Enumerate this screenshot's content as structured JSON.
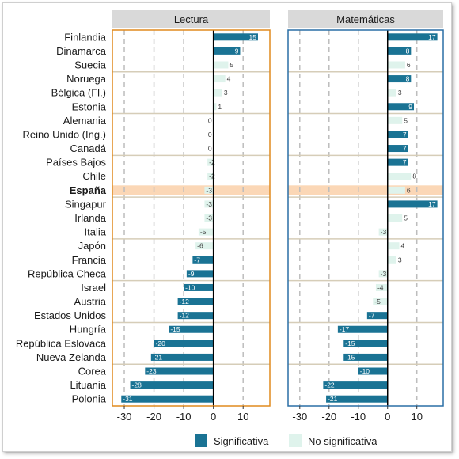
{
  "colors": {
    "significant": "#1a7394",
    "not_significant": "#dff3ec",
    "highlight": "#fbd7b6",
    "panel_left_border": "#e08a1e",
    "panel_right_border": "#2a6fa5",
    "strip_bg": "#d9d9d9",
    "group_separator": "#d6cdb8",
    "grid": "#bdbdbd"
  },
  "chart_data": {
    "type": "bar",
    "orientation": "horizontal",
    "categories": [
      "Finlandia",
      "Dinamarca",
      "Suecia",
      "Noruega",
      "Bélgica (Fl.)",
      "Estonia",
      "Alemania",
      "Reino Unido (Ing.)",
      "Canadá",
      "Países Bajos",
      "Chile",
      "España",
      "Singapur",
      "Irlanda",
      "Italia",
      "Japón",
      "Francia",
      "República Checa",
      "Israel",
      "Austria",
      "Estados Unidos",
      "Hungría",
      "República Eslovaca",
      "Nueva Zelanda",
      "Corea",
      "Lituania",
      "Polonia"
    ],
    "highlight_category": "España",
    "group_separators_after": [
      2,
      5,
      8,
      11,
      14,
      17,
      20,
      23
    ],
    "xlim": [
      -34,
      19
    ],
    "xticks": [
      -30,
      -20,
      -10,
      0,
      10
    ],
    "panels": [
      {
        "title": "Lectura",
        "values": [
          15,
          9,
          5,
          4,
          3,
          1,
          0,
          0,
          0,
          -2,
          -2,
          -3,
          -3,
          -3,
          -5,
          -6,
          -7,
          -9,
          -10,
          -12,
          -12,
          -15,
          -20,
          -21,
          -23,
          -28,
          -31
        ],
        "significant": [
          true,
          true,
          false,
          false,
          false,
          false,
          false,
          false,
          false,
          false,
          false,
          false,
          false,
          false,
          false,
          false,
          true,
          true,
          true,
          true,
          true,
          true,
          true,
          true,
          true,
          true,
          true
        ]
      },
      {
        "title": "Matemáticas",
        "values": [
          17,
          8,
          6,
          8,
          3,
          9,
          5,
          7,
          7,
          7,
          8,
          6,
          17,
          5,
          -3,
          4,
          3,
          -3,
          -4,
          -5,
          -7,
          -17,
          -15,
          -15,
          -10,
          -22,
          -21
        ],
        "significant": [
          true,
          true,
          false,
          true,
          false,
          true,
          false,
          true,
          true,
          true,
          false,
          false,
          true,
          false,
          false,
          false,
          false,
          false,
          false,
          false,
          true,
          true,
          true,
          true,
          true,
          true,
          true
        ]
      }
    ],
    "legend": {
      "position": "bottom",
      "items": [
        {
          "key": "significant",
          "label": "Significativa"
        },
        {
          "key": "not_significant",
          "label": "No significativa"
        }
      ]
    }
  }
}
